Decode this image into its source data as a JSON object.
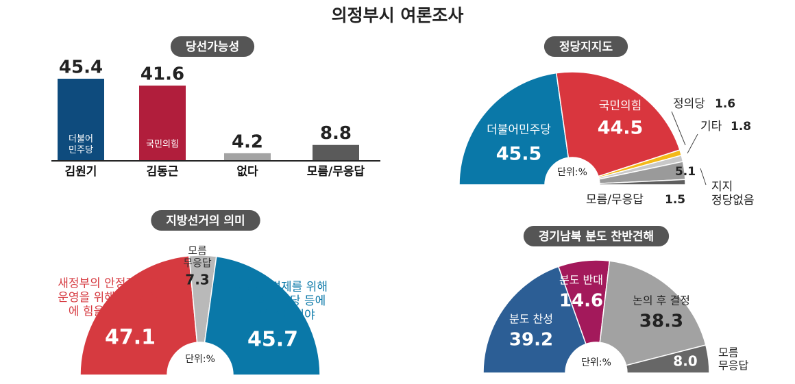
{
  "title": "의정부시 여론조사",
  "chart_data": [
    {
      "type": "bar",
      "title": "당선가능성",
      "categories": [
        "김원기",
        "김동근",
        "없다",
        "모름/무응답"
      ],
      "values": [
        45.4,
        41.6,
        4.2,
        8.8
      ],
      "colors": [
        "#0e4b7d",
        "#b11e3c",
        "#a3a3a3",
        "#5a5a5a"
      ],
      "bar_labels": [
        "더불어\n민주당",
        "국민의힘",
        null,
        null
      ]
    },
    {
      "type": "half-donut",
      "title": "정당지지도",
      "unit": "단위:%",
      "categories": [
        "더불어민주당",
        "국민의힘",
        "정의당",
        "기타",
        "지지\n정당없음",
        "모름/무응답"
      ],
      "values": [
        45.5,
        44.5,
        1.6,
        1.8,
        5.1,
        1.5
      ],
      "colors": [
        "#0a78a8",
        "#d9363e",
        "#f3b918",
        "#c8c8c8",
        "#9a9a9a",
        "#5e5e5e"
      ]
    },
    {
      "type": "half-donut",
      "title": "지방선거의 의미",
      "unit": "단위:%",
      "categories": [
        "새정부의 안정적 국정\n운영을 위해 국민의힘\n에 힘을 실어줘야",
        "모름\n무응답",
        "새정부 견제를 위해\n더불어민주당 등에\n힘을 실어줘야"
      ],
      "values": [
        47.1,
        7.3,
        45.7
      ],
      "colors": [
        "#d63a40",
        "#b9b9b9",
        "#0a78a8"
      ]
    },
    {
      "type": "half-donut",
      "title": "경기남북 분도 찬반견해",
      "unit": "단위:%",
      "categories": [
        "분도 찬성",
        "분도 반대",
        "논의 후 결정",
        "모름\n무응답"
      ],
      "values": [
        39.2,
        14.6,
        38.3,
        8.0
      ],
      "value_labels": [
        "39.2",
        "14.6",
        "38.3",
        "8.0"
      ],
      "colors": [
        "#2c5e95",
        "#a3195b",
        "#a2a2a2",
        "#676767"
      ]
    }
  ]
}
